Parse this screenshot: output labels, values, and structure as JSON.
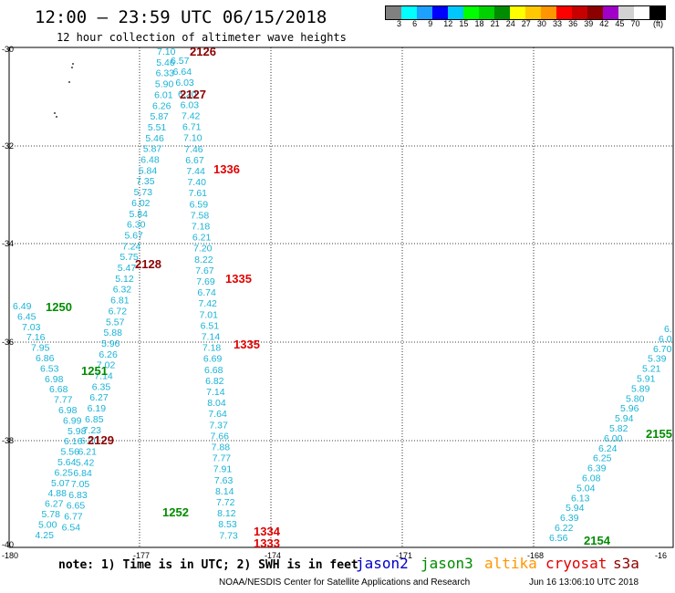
{
  "header": {
    "title": "12:00 — 23:59 UTC 06/15/2018",
    "subtitle": "12 hour collection of altimeter wave heights"
  },
  "legend": {
    "unit": "(ft)",
    "swatch_colors": [
      "#808080",
      "#00ffff",
      "#1ea0ff",
      "#0000ff",
      "#00c8ff",
      "#00ff00",
      "#00d200",
      "#008c00",
      "#ffff00",
      "#ffc800",
      "#ff9600",
      "#ff0000",
      "#c80000",
      "#8c0000",
      "#a000c8",
      "#d2d2d2",
      "#ffffff",
      "#000000"
    ],
    "labels": [
      "3",
      "6",
      "9",
      "12",
      "15",
      "18",
      "21",
      "24",
      "27",
      "30",
      "33",
      "36",
      "39",
      "42",
      "45",
      "70"
    ]
  },
  "axes": {
    "lat_ticks": [
      "-30",
      "-32",
      "-34",
      "-36",
      "-38",
      "-40"
    ],
    "lon_ticks": [
      "-180",
      "-177",
      "-174",
      "-171",
      "-168",
      "-16"
    ]
  },
  "tracks": {
    "colors": {
      "cyan": "#1ab3d6",
      "green": "#008c00",
      "red": "#e00000",
      "darkred": "#8c0000"
    },
    "track_a": [
      "7.10",
      "6.57",
      "5.46",
      "6.64",
      "6.33",
      "6.03",
      "5.90",
      "6.20",
      "6.01",
      "6.03",
      "6.26",
      "7.42",
      "5.87",
      "6.71",
      "5.51",
      "7.10",
      "5.46",
      "7.46",
      "5.87",
      "6.67",
      "6.48",
      "7.44",
      "5.84",
      "7.40",
      "7.35",
      "7.61",
      "5.73",
      "6.59",
      "6.02",
      "7.58",
      "5.84",
      "7.18",
      "6.30",
      "6.21",
      "5.67",
      "7.20",
      "7.24",
      "8.22",
      "5.75",
      "7.67",
      "5.47",
      "7.69",
      "5.12",
      "6.74",
      "6.32",
      "7.42",
      "6.81",
      "7.01",
      "6.72",
      "6.51",
      "5.57",
      "7.14",
      "5.88",
      "7.18",
      "5.96",
      "6.69",
      "6.26",
      "6.68",
      "7.02",
      "6.82",
      "7.14",
      "7.14",
      "6.35",
      "8.04",
      "6.27",
      "7.64",
      "6.19",
      "7.37",
      "6.85",
      "7.66",
      "7.23",
      "7.88",
      "6.30",
      "7.77",
      "6.21",
      "7.91",
      "5.42",
      "7.63",
      "6.84",
      "8.14",
      "7.05",
      "7.72",
      "6.83",
      "8.12",
      "6.65",
      "8.53",
      "6.77",
      "7.73",
      "6.54"
    ],
    "track_b": [
      "6.49",
      "6.45",
      "7.03",
      "7.16",
      "7.95",
      "6.86",
      "6.53",
      "6.98",
      "6.68",
      "7.77",
      "6.98",
      "6.99",
      "5.98",
      "6.16",
      "5.56",
      "5.64",
      "6.25",
      "5.07",
      "4.88",
      "6.27",
      "5.78",
      "5.00",
      "4.25"
    ],
    "track_c": [
      "6.",
      "6.0",
      "6.70",
      "5.39",
      "5.21",
      "5.91",
      "5.89",
      "5.80",
      "5.96",
      "5.94",
      "5.82",
      "6.00",
      "6.24",
      "6.25",
      "6.39",
      "6.08",
      "5.04",
      "6.13",
      "5.94",
      "6.39",
      "6.22",
      "6.56"
    ],
    "time_labels": [
      {
        "text": "2126",
        "tone": "darkred"
      },
      {
        "text": "2127",
        "tone": "darkred"
      },
      {
        "text": "1336",
        "tone": "red"
      },
      {
        "text": "2128",
        "tone": "darkred"
      },
      {
        "text": "1335",
        "tone": "red"
      },
      {
        "text": "1250",
        "tone": "green"
      },
      {
        "text": "1335",
        "tone": "red"
      },
      {
        "text": "1251",
        "tone": "green"
      },
      {
        "text": "2129",
        "tone": "darkred"
      },
      {
        "text": "1252",
        "tone": "green"
      },
      {
        "text": "1334",
        "tone": "red"
      },
      {
        "text": "1333",
        "tone": "red"
      },
      {
        "text": "2155",
        "tone": "green"
      },
      {
        "text": "2154",
        "tone": "green"
      }
    ]
  },
  "note": "note: 1) Time is in UTC; 2) SWH is in feet",
  "satellites": [
    {
      "name": "jason2",
      "color": "#0000c8"
    },
    {
      "name": "jason3",
      "color": "#008c00"
    },
    {
      "name": "altika",
      "color": "#ff9600"
    },
    {
      "name": "cryosat",
      "color": "#e00000"
    },
    {
      "name": "s3a",
      "color": "#8c0000"
    }
  ],
  "footer": {
    "credit": "NOAA/NESDIS Center for Satellite Applications and Research",
    "timestamp": "Jun 16 13:06:10 UTC 2018"
  }
}
